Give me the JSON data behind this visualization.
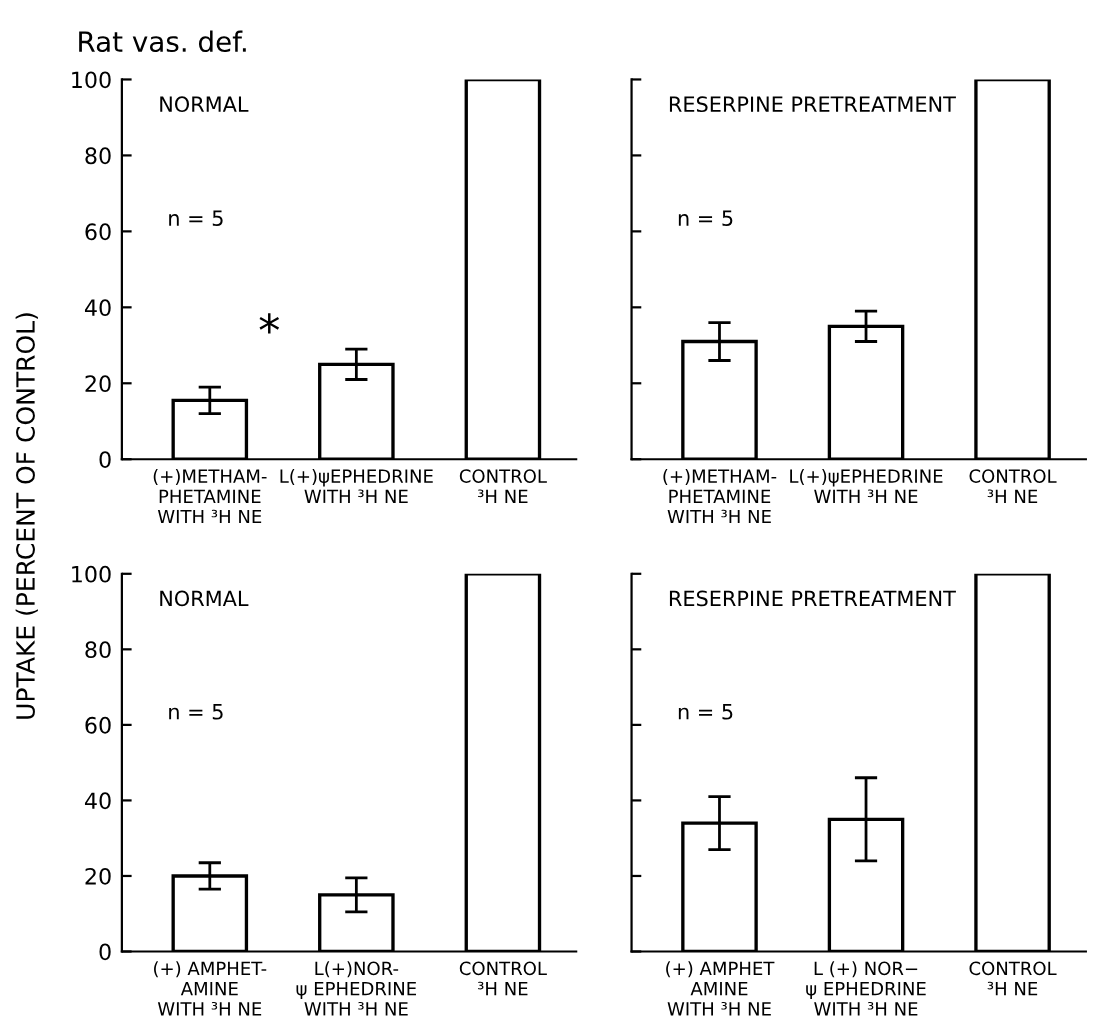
{
  "chart_data": [
    {
      "type": "bar",
      "title": "Rat vas. def.",
      "ylabel": "UPTAKE (PERCENT OF CONTROL)",
      "categories": [
        "(+)METHAM-\nPHETAMINE\nWITH ³H NE",
        "L(+)ψEPHEDRINE\nWITH ³H NE",
        "CONTROL\n³H NE"
      ],
      "values": [
        15.5,
        25,
        100
      ],
      "errors": [
        3.5,
        4,
        null
      ],
      "color": "#ffffff",
      "ylim": [
        0,
        100
      ],
      "yticks": [
        0,
        20,
        40,
        60,
        80,
        100
      ],
      "grid": false,
      "legend": false,
      "annotations": [
        "NORMAL",
        "n = 5",
        "*"
      ]
    },
    {
      "type": "bar",
      "categories": [
        "(+)METHAM-\nPHETAMINE\nWITH ³H NE",
        "L(+)ψEPHEDRINE\nWITH ³H NE",
        "CONTROL\n³H NE"
      ],
      "values": [
        31,
        35,
        100
      ],
      "errors": [
        5,
        4,
        null
      ],
      "color": "#ffffff",
      "ylim": [
        0,
        100
      ],
      "yticks": [
        {
          "value": 0,
          "label": null
        },
        {
          "value": 20,
          "label": null
        },
        {
          "value": 40,
          "label": null
        },
        {
          "value": 60,
          "label": null
        },
        {
          "value": 80,
          "label": null
        },
        {
          "value": 100,
          "label": null
        }
      ],
      "tick_labels": "x",
      "grid": false,
      "legend": false,
      "annotations": [
        "RESERPINE PRETREATMENT",
        "n = 5"
      ]
    },
    {
      "type": "bar",
      "categories": [
        "(+) AMPHET-\nAMINE\nWITH ³H NE",
        "L(+)NOR-\nψ EPHEDRINE\nWITH ³H NE",
        "CONTROL\n³H NE"
      ],
      "values": [
        20,
        15,
        100
      ],
      "errors": [
        3.5,
        4.5,
        null
      ],
      "color": "#ffffff",
      "ylim": [
        0,
        100
      ],
      "yticks": [
        0,
        20,
        40,
        60,
        80,
        100
      ],
      "grid": false,
      "legend": false,
      "annotations": [
        "NORMAL",
        "n = 5"
      ]
    },
    {
      "type": "bar",
      "categories": [
        "(+) AMPHET\nAMINE\nWITH ³H NE",
        "L (+) NOR−\nψ EPHEDRINE\nWITH ³H NE",
        "CONTROL\n³H NE"
      ],
      "values": [
        34,
        35,
        100
      ],
      "errors": [
        7,
        11,
        null
      ],
      "color": "#ffffff",
      "ylim": [
        0,
        100
      ],
      "yticks": [
        {
          "value": 0,
          "label": null
        },
        {
          "value": 20,
          "label": null
        },
        {
          "value": 40,
          "label": null
        },
        {
          "value": 60,
          "label": null
        },
        {
          "value": 80,
          "label": null
        },
        {
          "value": 100,
          "label": null
        }
      ],
      "tick_labels": "x",
      "grid": false,
      "legend": false,
      "annotations": [
        "RESERPINE PRETREATMENT",
        "n = 5"
      ]
    }
  ]
}
